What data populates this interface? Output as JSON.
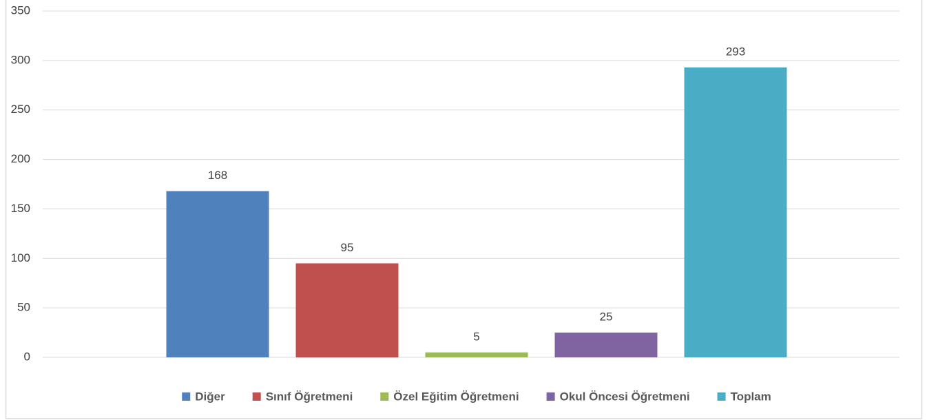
{
  "chart_data": {
    "type": "bar",
    "categories": [
      null
    ],
    "series": [
      {
        "name": "Diğer",
        "color": "#4f81bd",
        "values": [
          168
        ]
      },
      {
        "name": "Sınıf Öğretmeni",
        "color": "#c0504d",
        "values": [
          95
        ]
      },
      {
        "name": "Özel Eğitim Öğretmeni",
        "color": "#9bbb59",
        "values": [
          5
        ]
      },
      {
        "name": "Okul Öncesi Öğretmeni",
        "color": "#8064a2",
        "values": [
          25
        ]
      },
      {
        "name": "Toplam",
        "color": "#4bacc6",
        "values": [
          293
        ]
      }
    ],
    "ylim": [
      0,
      350
    ],
    "yticks": [
      0,
      50,
      100,
      150,
      200,
      250,
      300,
      350
    ],
    "grid": true,
    "legend": "bottom"
  }
}
